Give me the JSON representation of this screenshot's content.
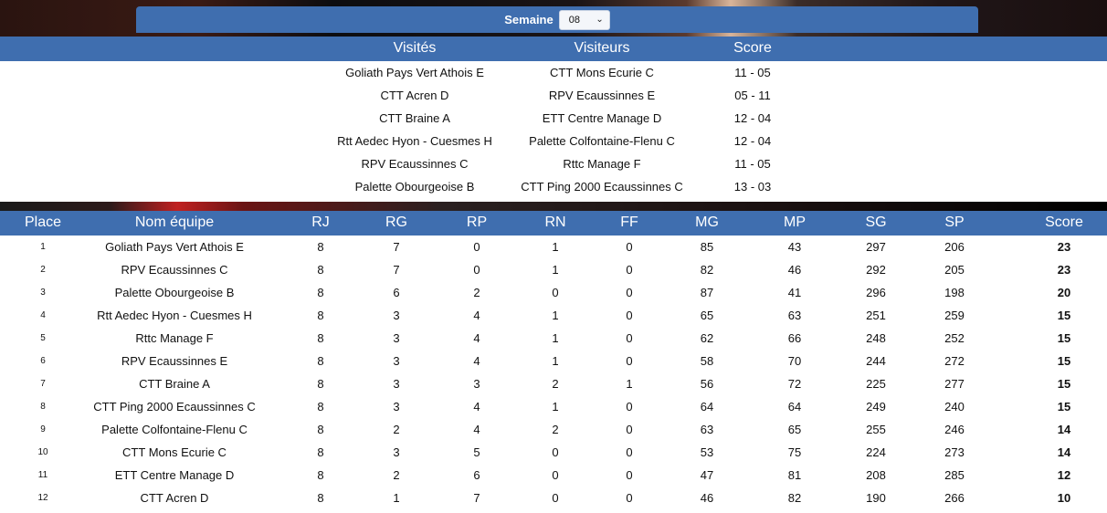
{
  "week": {
    "label": "Semaine",
    "value": "08"
  },
  "matches": {
    "headers": {
      "home": "Visités",
      "away": "Visiteurs",
      "score": "Score"
    },
    "rows": [
      {
        "home": "Goliath Pays Vert Athois E",
        "away": "CTT Mons Ecurie C",
        "score": "11 - 05"
      },
      {
        "home": "CTT Acren D",
        "away": "RPV Ecaussinnes E",
        "score": "05 - 11"
      },
      {
        "home": "CTT Braine A",
        "away": "ETT Centre Manage D",
        "score": "12 - 04"
      },
      {
        "home": "Rtt Aedec Hyon - Cuesmes H",
        "away": "Palette Colfontaine-Flenu C",
        "score": "12 - 04"
      },
      {
        "home": "RPV Ecaussinnes C",
        "away": "Rttc Manage F",
        "score": "11 - 05"
      },
      {
        "home": "Palette Obourgeoise B",
        "away": "CTT Ping 2000 Ecaussinnes C",
        "score": "13 - 03"
      }
    ]
  },
  "standings": {
    "headers": {
      "place": "Place",
      "team": "Nom équipe",
      "rj": "RJ",
      "rg": "RG",
      "rp": "RP",
      "rn": "RN",
      "ff": "FF",
      "mg": "MG",
      "mp": "MP",
      "sg": "SG",
      "sp": "SP",
      "score": "Score"
    },
    "rows": [
      {
        "place": "1",
        "team": "Goliath Pays Vert Athois E",
        "rj": "8",
        "rg": "7",
        "rp": "0",
        "rn": "1",
        "ff": "0",
        "mg": "85",
        "mp": "43",
        "sg": "297",
        "sp": "206",
        "score": "23"
      },
      {
        "place": "2",
        "team": "RPV Ecaussinnes C",
        "rj": "8",
        "rg": "7",
        "rp": "0",
        "rn": "1",
        "ff": "0",
        "mg": "82",
        "mp": "46",
        "sg": "292",
        "sp": "205",
        "score": "23"
      },
      {
        "place": "3",
        "team": "Palette Obourgeoise B",
        "rj": "8",
        "rg": "6",
        "rp": "2",
        "rn": "0",
        "ff": "0",
        "mg": "87",
        "mp": "41",
        "sg": "296",
        "sp": "198",
        "score": "20"
      },
      {
        "place": "4",
        "team": "Rtt Aedec Hyon - Cuesmes H",
        "rj": "8",
        "rg": "3",
        "rp": "4",
        "rn": "1",
        "ff": "0",
        "mg": "65",
        "mp": "63",
        "sg": "251",
        "sp": "259",
        "score": "15"
      },
      {
        "place": "5",
        "team": "Rttc Manage F",
        "rj": "8",
        "rg": "3",
        "rp": "4",
        "rn": "1",
        "ff": "0",
        "mg": "62",
        "mp": "66",
        "sg": "248",
        "sp": "252",
        "score": "15"
      },
      {
        "place": "6",
        "team": "RPV Ecaussinnes E",
        "rj": "8",
        "rg": "3",
        "rp": "4",
        "rn": "1",
        "ff": "0",
        "mg": "58",
        "mp": "70",
        "sg": "244",
        "sp": "272",
        "score": "15"
      },
      {
        "place": "7",
        "team": "CTT Braine A",
        "rj": "8",
        "rg": "3",
        "rp": "3",
        "rn": "2",
        "ff": "1",
        "mg": "56",
        "mp": "72",
        "sg": "225",
        "sp": "277",
        "score": "15"
      },
      {
        "place": "8",
        "team": "CTT Ping 2000 Ecaussinnes C",
        "rj": "8",
        "rg": "3",
        "rp": "4",
        "rn": "1",
        "ff": "0",
        "mg": "64",
        "mp": "64",
        "sg": "249",
        "sp": "240",
        "score": "15"
      },
      {
        "place": "9",
        "team": "Palette Colfontaine-Flenu C",
        "rj": "8",
        "rg": "2",
        "rp": "4",
        "rn": "2",
        "ff": "0",
        "mg": "63",
        "mp": "65",
        "sg": "255",
        "sp": "246",
        "score": "14"
      },
      {
        "place": "10",
        "team": "CTT Mons Ecurie C",
        "rj": "8",
        "rg": "3",
        "rp": "5",
        "rn": "0",
        "ff": "0",
        "mg": "53",
        "mp": "75",
        "sg": "224",
        "sp": "273",
        "score": "14"
      },
      {
        "place": "11",
        "team": "ETT Centre Manage D",
        "rj": "8",
        "rg": "2",
        "rp": "6",
        "rn": "0",
        "ff": "0",
        "mg": "47",
        "mp": "81",
        "sg": "208",
        "sp": "285",
        "score": "12"
      },
      {
        "place": "12",
        "team": "CTT Acren D",
        "rj": "8",
        "rg": "1",
        "rp": "7",
        "rn": "0",
        "ff": "0",
        "mg": "46",
        "mp": "82",
        "sg": "190",
        "sp": "266",
        "score": "10"
      }
    ]
  },
  "colors": {
    "header_blue": "#3f6eaf",
    "header_text": "#ffffff",
    "row_text": "#111111"
  }
}
